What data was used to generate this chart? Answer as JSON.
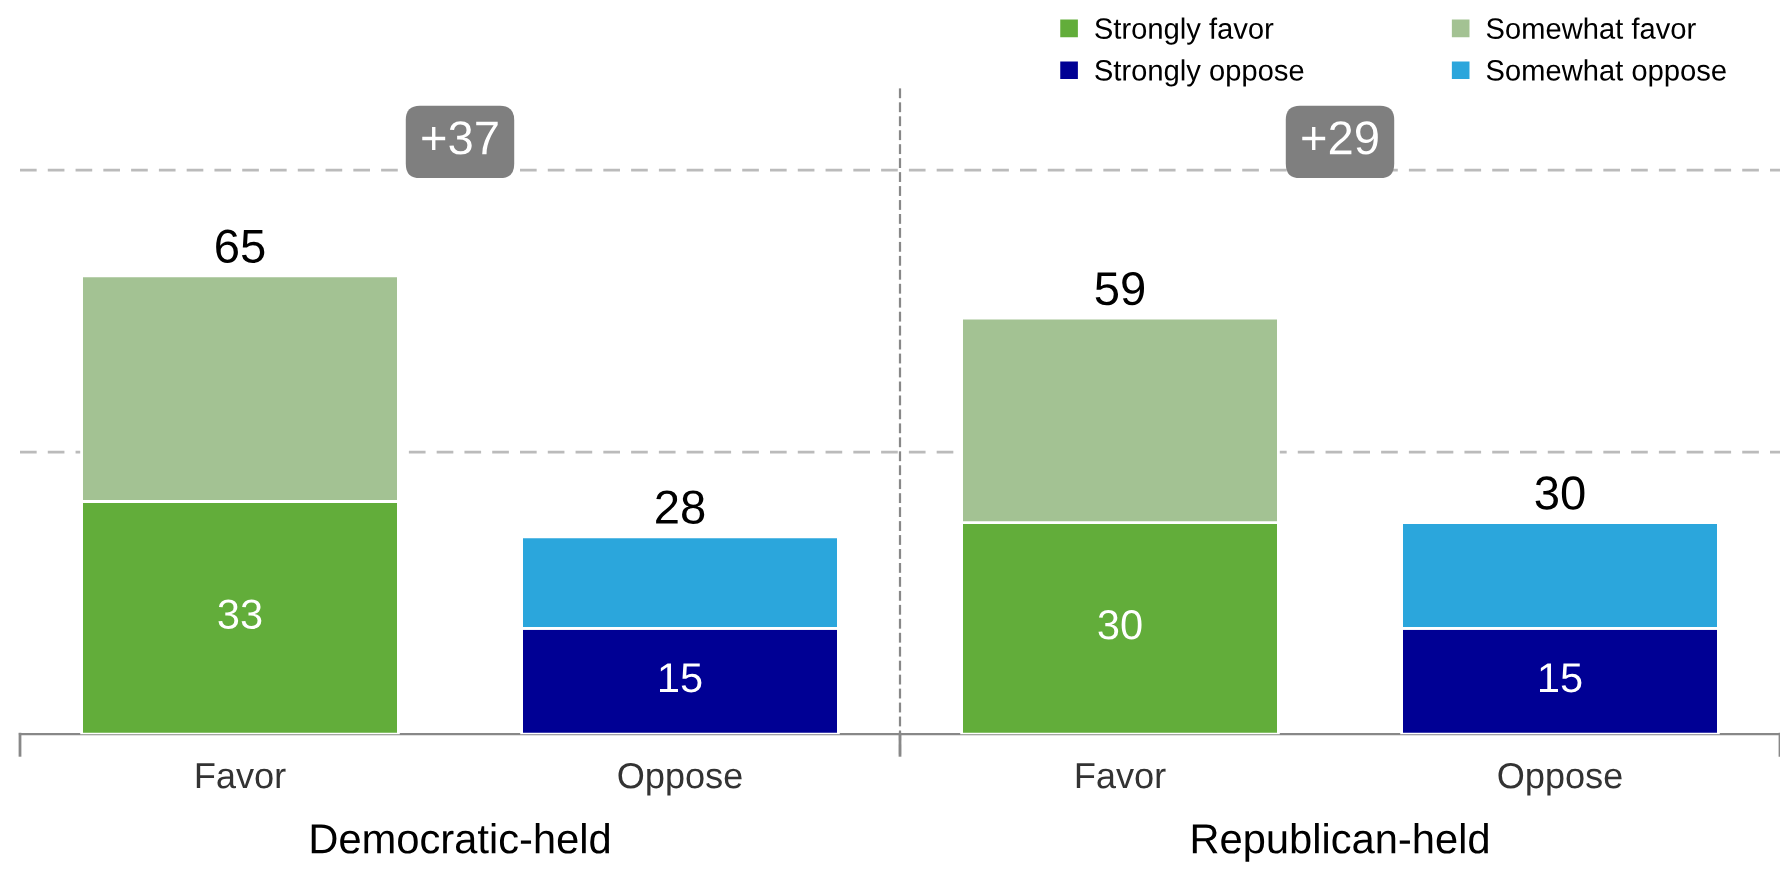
{
  "chart_data": {
    "type": "bar",
    "stacked": true,
    "categories": [
      "Favor",
      "Oppose",
      "Favor",
      "Oppose"
    ],
    "series": [
      {
        "name": "Strongly favor",
        "color": "#62ad3a",
        "values": [
          33,
          null,
          30,
          null
        ],
        "value_labels": [
          "33",
          null,
          "30",
          null
        ]
      },
      {
        "name": "Somewhat favor",
        "color": "#a3c293",
        "values": [
          32,
          null,
          29,
          null
        ]
      },
      {
        "name": "Strongly oppose",
        "color": "#000094",
        "values": [
          null,
          15,
          null,
          15
        ],
        "value_labels": [
          null,
          "15",
          null,
          "15"
        ]
      },
      {
        "name": "Somewhat oppose",
        "color": "#2ba6dc",
        "values": [
          null,
          13,
          null,
          15
        ]
      }
    ],
    "totals": [
      "65",
      "28",
      "59",
      "30"
    ],
    "ylim": [
      0,
      90
    ],
    "tick_labels": "x",
    "legend": "top right",
    "ref_lines": [
      {
        "axis": "y",
        "value": 40,
        "color": "#bbbbbb",
        "line_style": "dashed"
      },
      {
        "axis": "y",
        "value": 80,
        "color": "#bbbbbb",
        "line_style": "dashed"
      }
    ],
    "annotations": [
      "+37",
      "+29",
      "Democratic-held",
      "Republican-held"
    ]
  }
}
